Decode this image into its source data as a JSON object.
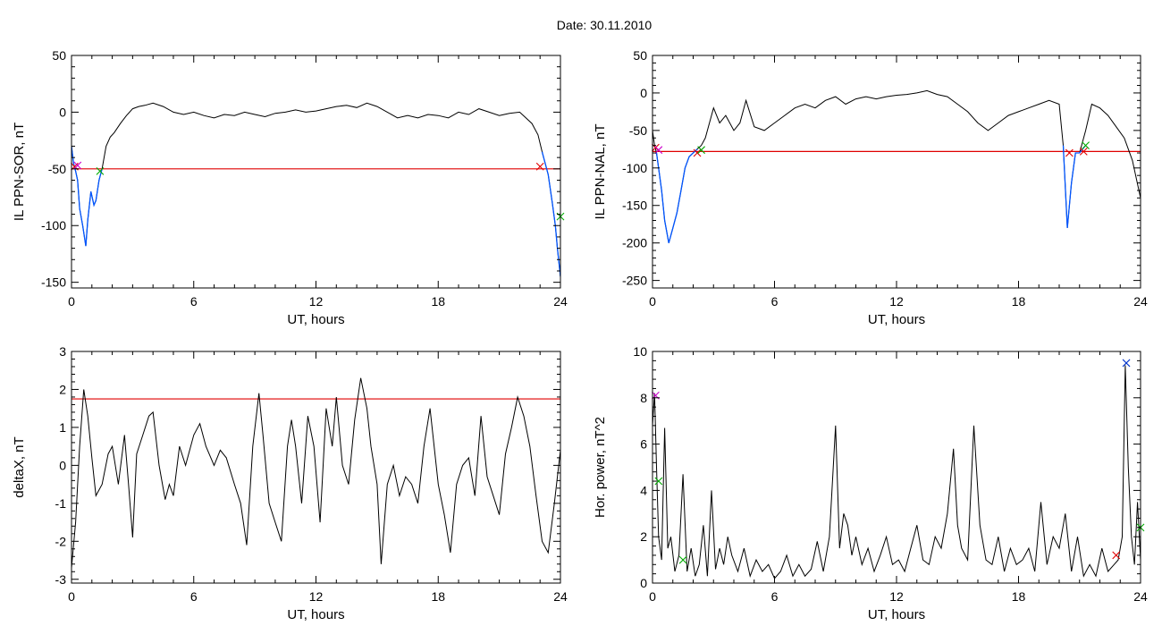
{
  "figure": {
    "title": "Date:  30.11.2010"
  },
  "chart_data": [
    {
      "type": "line",
      "ylabel": "IL PPN-SOR, nT",
      "xlabel": "UT, hours",
      "xlim": [
        0,
        24
      ],
      "ylim": [
        -155,
        50
      ],
      "xticks": [
        0,
        6,
        12,
        18,
        24
      ],
      "yticks": [
        -150,
        -100,
        -50,
        0,
        50
      ],
      "threshold": -50,
      "series": [
        {
          "color": "#000000",
          "x": [
            0,
            0.1,
            0.2,
            0.3,
            0.4,
            0.55,
            0.7,
            0.8,
            0.95,
            1.1,
            1.2,
            1.35,
            1.5,
            1.7,
            1.9,
            2.1,
            2.4,
            2.7,
            3.0,
            3.3,
            3.6,
            4.0,
            4.5,
            5.0,
            5.5,
            6.0,
            6.5,
            7.0,
            7.5,
            8.0,
            8.5,
            9.0,
            9.5,
            10.0,
            10.5,
            11.0,
            11.5,
            12.0,
            12.5,
            13.0,
            13.5,
            14.0,
            14.5,
            15.0,
            15.5,
            16.0,
            16.5,
            17.0,
            17.5,
            18.0,
            18.5,
            19.0,
            19.5,
            20.0,
            20.5,
            21.0,
            21.5,
            22.0,
            22.3,
            22.6,
            22.9,
            23.1,
            23.25,
            23.4,
            23.6,
            23.75,
            23.85,
            24.0
          ],
          "y": [
            -30,
            -45,
            -52,
            -60,
            -85,
            -100,
            -118,
            -95,
            -70,
            -82,
            -78,
            -60,
            -50,
            -30,
            -22,
            -18,
            -10,
            -3,
            3,
            5,
            6,
            8,
            5,
            0,
            -2,
            0,
            -3,
            -5,
            -2,
            -3,
            0,
            -2,
            -4,
            -1,
            0,
            2,
            0,
            1,
            3,
            5,
            6,
            4,
            8,
            5,
            0,
            -5,
            -3,
            -5,
            -2,
            -3,
            -5,
            0,
            -2,
            3,
            0,
            -3,
            -1,
            0,
            -5,
            -10,
            -20,
            -35,
            -45,
            -55,
            -80,
            -100,
            -120,
            -145
          ]
        },
        {
          "color": "#0055ff",
          "x": [
            0,
            0.1,
            0.2,
            0.3,
            0.4,
            0.55,
            0.7,
            0.8,
            0.95,
            1.1,
            1.2,
            1.35,
            1.5
          ],
          "y": [
            -30,
            -45,
            -52,
            -60,
            -85,
            -100,
            -118,
            -95,
            -70,
            -82,
            -78,
            -60,
            -50
          ]
        },
        {
          "color": "#0055ff",
          "x": [
            23.1,
            23.25,
            23.4,
            23.6,
            23.75,
            23.85,
            24.0
          ],
          "y": [
            -35,
            -45,
            -55,
            -80,
            -100,
            -120,
            -145
          ]
        }
      ],
      "markers": [
        {
          "x": 0.15,
          "y": -48,
          "color": "#e00000"
        },
        {
          "x": 0.3,
          "y": -47,
          "color": "#cc00cc"
        },
        {
          "x": 1.4,
          "y": -52,
          "color": "#00aa00"
        },
        {
          "x": 23.0,
          "y": -48,
          "color": "#e00000"
        },
        {
          "x": 24.0,
          "y": -92,
          "color": "#00aa00"
        }
      ]
    },
    {
      "type": "line",
      "ylabel": "IL PPN-NAL, nT",
      "xlabel": "UT, hours",
      "xlim": [
        0,
        24
      ],
      "ylim": [
        -260,
        50
      ],
      "xticks": [
        0,
        6,
        12,
        18,
        24
      ],
      "yticks": [
        -250,
        -200,
        -150,
        -100,
        -50,
        0,
        50
      ],
      "threshold": -78,
      "series": [
        {
          "color": "#000000",
          "x": [
            0,
            0.1,
            0.2,
            0.3,
            0.45,
            0.6,
            0.8,
            1.0,
            1.2,
            1.4,
            1.6,
            1.8,
            2.0,
            2.2,
            2.4,
            2.6,
            3.0,
            3.3,
            3.6,
            4.0,
            4.3,
            4.6,
            5.0,
            5.5,
            6.0,
            6.5,
            7.0,
            7.5,
            8.0,
            8.5,
            9.0,
            9.5,
            10.0,
            10.5,
            11.0,
            11.5,
            12.0,
            12.5,
            13.0,
            13.5,
            14.0,
            14.5,
            15.0,
            15.5,
            16.0,
            16.5,
            17.0,
            17.5,
            18.0,
            18.5,
            19.0,
            19.5,
            20.0,
            20.2,
            20.4,
            20.6,
            20.8,
            21.0,
            21.3,
            21.6,
            22.0,
            22.4,
            22.8,
            23.2,
            23.6,
            24.0
          ],
          "y": [
            -50,
            -70,
            -80,
            -100,
            -130,
            -170,
            -200,
            -180,
            -160,
            -130,
            -100,
            -85,
            -80,
            -75,
            -70,
            -60,
            -20,
            -40,
            -30,
            -50,
            -40,
            -10,
            -45,
            -50,
            -40,
            -30,
            -20,
            -15,
            -20,
            -10,
            -5,
            -15,
            -8,
            -5,
            -8,
            -5,
            -3,
            -2,
            0,
            3,
            -2,
            -5,
            -15,
            -25,
            -40,
            -50,
            -40,
            -30,
            -25,
            -20,
            -15,
            -10,
            -15,
            -70,
            -180,
            -120,
            -80,
            -80,
            -50,
            -15,
            -20,
            -30,
            -45,
            -60,
            -90,
            -140
          ]
        },
        {
          "color": "#0055ff",
          "x": [
            0.2,
            0.3,
            0.45,
            0.6,
            0.8,
            1.0,
            1.2,
            1.4,
            1.6,
            1.8,
            2.0,
            2.2
          ],
          "y": [
            -80,
            -100,
            -130,
            -170,
            -200,
            -180,
            -160,
            -130,
            -100,
            -85,
            -80,
            -75
          ]
        },
        {
          "color": "#0055ff",
          "x": [
            20.2,
            20.4,
            20.6,
            20.8,
            21.0,
            21.3
          ],
          "y": [
            -70,
            -180,
            -120,
            -80,
            -80,
            -70
          ]
        }
      ],
      "markers": [
        {
          "x": 0.15,
          "y": -73,
          "color": "#e00000"
        },
        {
          "x": 0.3,
          "y": -76,
          "color": "#cc00cc"
        },
        {
          "x": 2.2,
          "y": -80,
          "color": "#e00000"
        },
        {
          "x": 2.4,
          "y": -76,
          "color": "#00aa00"
        },
        {
          "x": 20.5,
          "y": -80,
          "color": "#e00000"
        },
        {
          "x": 21.2,
          "y": -78,
          "color": "#e00000"
        },
        {
          "x": 21.3,
          "y": -70,
          "color": "#00aa00"
        }
      ]
    },
    {
      "type": "line",
      "ylabel": "deltaX, nT",
      "xlabel": "UT, hours",
      "xlim": [
        0,
        24
      ],
      "ylim": [
        -3.1,
        3
      ],
      "xticks": [
        0,
        6,
        12,
        18,
        24
      ],
      "yticks": [
        -3,
        -2,
        -1,
        0,
        1,
        2,
        3
      ],
      "threshold": 1.75,
      "series": [
        {
          "color": "#000000",
          "x": [
            0,
            0.2,
            0.4,
            0.6,
            0.8,
            1.0,
            1.2,
            1.5,
            1.8,
            2.0,
            2.3,
            2.6,
            2.8,
            3.0,
            3.2,
            3.5,
            3.8,
            4.0,
            4.3,
            4.6,
            4.8,
            5.0,
            5.3,
            5.6,
            6.0,
            6.3,
            6.6,
            7.0,
            7.3,
            7.6,
            8.0,
            8.3,
            8.6,
            8.9,
            9.2,
            9.4,
            9.7,
            10.0,
            10.3,
            10.6,
            10.8,
            11.0,
            11.3,
            11.6,
            11.9,
            12.2,
            12.5,
            12.8,
            13.0,
            13.3,
            13.6,
            13.9,
            14.2,
            14.5,
            14.7,
            15.0,
            15.2,
            15.5,
            15.8,
            16.1,
            16.4,
            16.7,
            17.0,
            17.3,
            17.6,
            18.0,
            18.3,
            18.6,
            18.9,
            19.2,
            19.5,
            19.8,
            20.1,
            20.4,
            20.7,
            21.0,
            21.3,
            21.6,
            21.9,
            22.2,
            22.5,
            22.8,
            23.1,
            23.4,
            23.7,
            24.0
          ],
          "y": [
            -2.7,
            -1.5,
            0.5,
            2.0,
            1.3,
            0.2,
            -0.8,
            -0.5,
            0.3,
            0.5,
            -0.5,
            0.8,
            -0.5,
            -1.9,
            0.3,
            0.8,
            1.3,
            1.4,
            0.0,
            -0.9,
            -0.5,
            -0.8,
            0.5,
            0.0,
            0.8,
            1.1,
            0.5,
            0.0,
            0.4,
            0.2,
            -0.5,
            -1.0,
            -2.1,
            0.5,
            1.9,
            0.8,
            -1.0,
            -1.5,
            -2.0,
            0.5,
            1.2,
            0.5,
            -1.0,
            1.3,
            0.5,
            -1.5,
            1.5,
            0.5,
            1.8,
            0.0,
            -0.5,
            1.2,
            2.3,
            1.5,
            0.5,
            -0.5,
            -2.6,
            -0.5,
            0.0,
            -0.8,
            -0.3,
            -0.5,
            -1.0,
            0.5,
            1.5,
            -0.5,
            -1.3,
            -2.3,
            -0.5,
            0.0,
            0.2,
            -0.8,
            1.3,
            -0.3,
            -0.8,
            -1.3,
            0.3,
            1.0,
            1.8,
            1.3,
            0.5,
            -0.8,
            -2.0,
            -2.3,
            -1.0,
            0.4
          ]
        }
      ],
      "markers": []
    },
    {
      "type": "line",
      "ylabel": "Hor. power, nT^2",
      "xlabel": "UT, hours",
      "xlim": [
        0,
        24
      ],
      "ylim": [
        0,
        10
      ],
      "xticks": [
        0,
        6,
        12,
        18,
        24
      ],
      "yticks": [
        0,
        2,
        4,
        6,
        8,
        10
      ],
      "threshold": null,
      "series": [
        {
          "color": "#000000",
          "x": [
            0,
            0.1,
            0.2,
            0.3,
            0.45,
            0.6,
            0.75,
            0.9,
            1.1,
            1.3,
            1.5,
            1.7,
            1.9,
            2.1,
            2.3,
            2.5,
            2.7,
            2.9,
            3.1,
            3.3,
            3.5,
            3.7,
            3.9,
            4.2,
            4.5,
            4.8,
            5.1,
            5.4,
            5.7,
            6.0,
            6.3,
            6.6,
            6.9,
            7.2,
            7.5,
            7.8,
            8.1,
            8.4,
            8.7,
            9.0,
            9.2,
            9.4,
            9.6,
            9.8,
            10.0,
            10.3,
            10.6,
            10.9,
            11.2,
            11.5,
            11.8,
            12.1,
            12.4,
            12.7,
            13.0,
            13.3,
            13.6,
            13.9,
            14.2,
            14.5,
            14.8,
            15.0,
            15.2,
            15.5,
            15.8,
            16.1,
            16.4,
            16.7,
            17.0,
            17.3,
            17.6,
            17.9,
            18.2,
            18.5,
            18.8,
            19.1,
            19.4,
            19.7,
            20.0,
            20.3,
            20.6,
            20.9,
            21.2,
            21.5,
            21.8,
            22.1,
            22.4,
            22.7,
            22.9,
            23.1,
            23.25,
            23.4,
            23.55,
            23.7,
            23.85,
            24.0
          ],
          "y": [
            6.8,
            8.2,
            5.0,
            2.0,
            1.0,
            6.7,
            1.5,
            2.0,
            0.5,
            1.2,
            4.7,
            0.5,
            1.5,
            0.3,
            0.8,
            2.5,
            0.3,
            4.0,
            0.6,
            1.5,
            0.8,
            2.0,
            1.2,
            0.5,
            1.5,
            0.3,
            1.0,
            0.5,
            0.8,
            0.2,
            0.5,
            1.2,
            0.3,
            0.8,
            0.3,
            0.6,
            1.8,
            0.5,
            2.0,
            6.8,
            1.5,
            3.0,
            2.5,
            1.2,
            2.0,
            0.8,
            1.5,
            0.5,
            1.2,
            2.0,
            0.8,
            1.0,
            0.5,
            1.5,
            2.5,
            1.0,
            0.8,
            2.0,
            1.5,
            3.0,
            5.8,
            2.5,
            1.5,
            1.0,
            6.8,
            2.5,
            1.0,
            0.8,
            2.0,
            0.5,
            1.5,
            0.8,
            1.0,
            1.5,
            0.5,
            3.5,
            0.8,
            2.0,
            1.5,
            3.0,
            0.5,
            2.0,
            0.3,
            0.8,
            0.3,
            1.5,
            0.5,
            0.8,
            1.0,
            2.0,
            9.4,
            5.0,
            2.0,
            0.8,
            3.5,
            1.0
          ]
        }
      ],
      "markers": [
        {
          "x": 0.15,
          "y": 8.1,
          "color": "#cc00cc"
        },
        {
          "x": 0.3,
          "y": 4.4,
          "color": "#00aa00"
        },
        {
          "x": 1.5,
          "y": 1.0,
          "color": "#00aa00"
        },
        {
          "x": 22.8,
          "y": 1.2,
          "color": "#e00000"
        },
        {
          "x": 23.3,
          "y": 9.5,
          "color": "#0033cc"
        },
        {
          "x": 24.0,
          "y": 2.4,
          "color": "#00aa00"
        }
      ]
    }
  ]
}
